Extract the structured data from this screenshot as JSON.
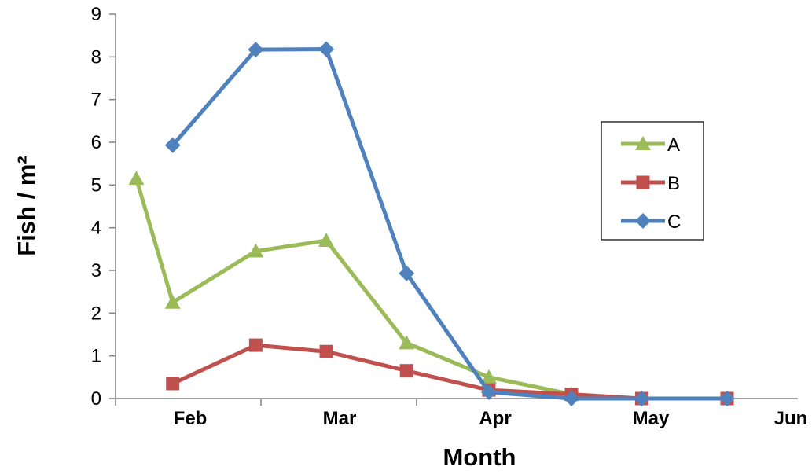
{
  "chart_data": {
    "type": "line",
    "title": "",
    "xlabel": "Month",
    "ylabel": "Fish / m²",
    "x_tick_labels": [
      "Feb",
      "Mar",
      "Apr",
      "May",
      "Jun"
    ],
    "x_range_days": [
      0,
      120
    ],
    "ylim": [
      0,
      9
    ],
    "y_ticks": [
      0,
      1,
      2,
      3,
      4,
      5,
      6,
      7,
      8,
      9
    ],
    "grid": false,
    "legend_position": "right",
    "series": [
      {
        "name": "A",
        "color": "#9BBB59",
        "marker": "triangle",
        "x": [
          "Feb 5",
          "Feb 12",
          "Feb 28",
          "Mar 14",
          "Mar 30",
          "Apr 15",
          "May 1"
        ],
        "y": [
          5.15,
          2.25,
          3.45,
          3.7,
          1.3,
          0.5,
          0.1
        ]
      },
      {
        "name": "B",
        "color": "#C0504D",
        "marker": "square",
        "x": [
          "Feb 12",
          "Feb 28",
          "Mar 14",
          "Mar 30",
          "Apr 15",
          "May 1",
          "May 15",
          "Jun 1"
        ],
        "y": [
          0.35,
          1.25,
          1.1,
          0.65,
          0.2,
          0.1,
          0.0,
          0.0
        ]
      },
      {
        "name": "C",
        "color": "#4F81BD",
        "marker": "diamond",
        "x": [
          "Feb 12",
          "Feb 28",
          "Mar 14",
          "Mar 30",
          "Apr 15",
          "May 1",
          "May 15",
          "Jun 1"
        ],
        "y": [
          5.93,
          8.17,
          8.18,
          2.93,
          0.15,
          0.0,
          0.0,
          0.0
        ]
      }
    ]
  }
}
